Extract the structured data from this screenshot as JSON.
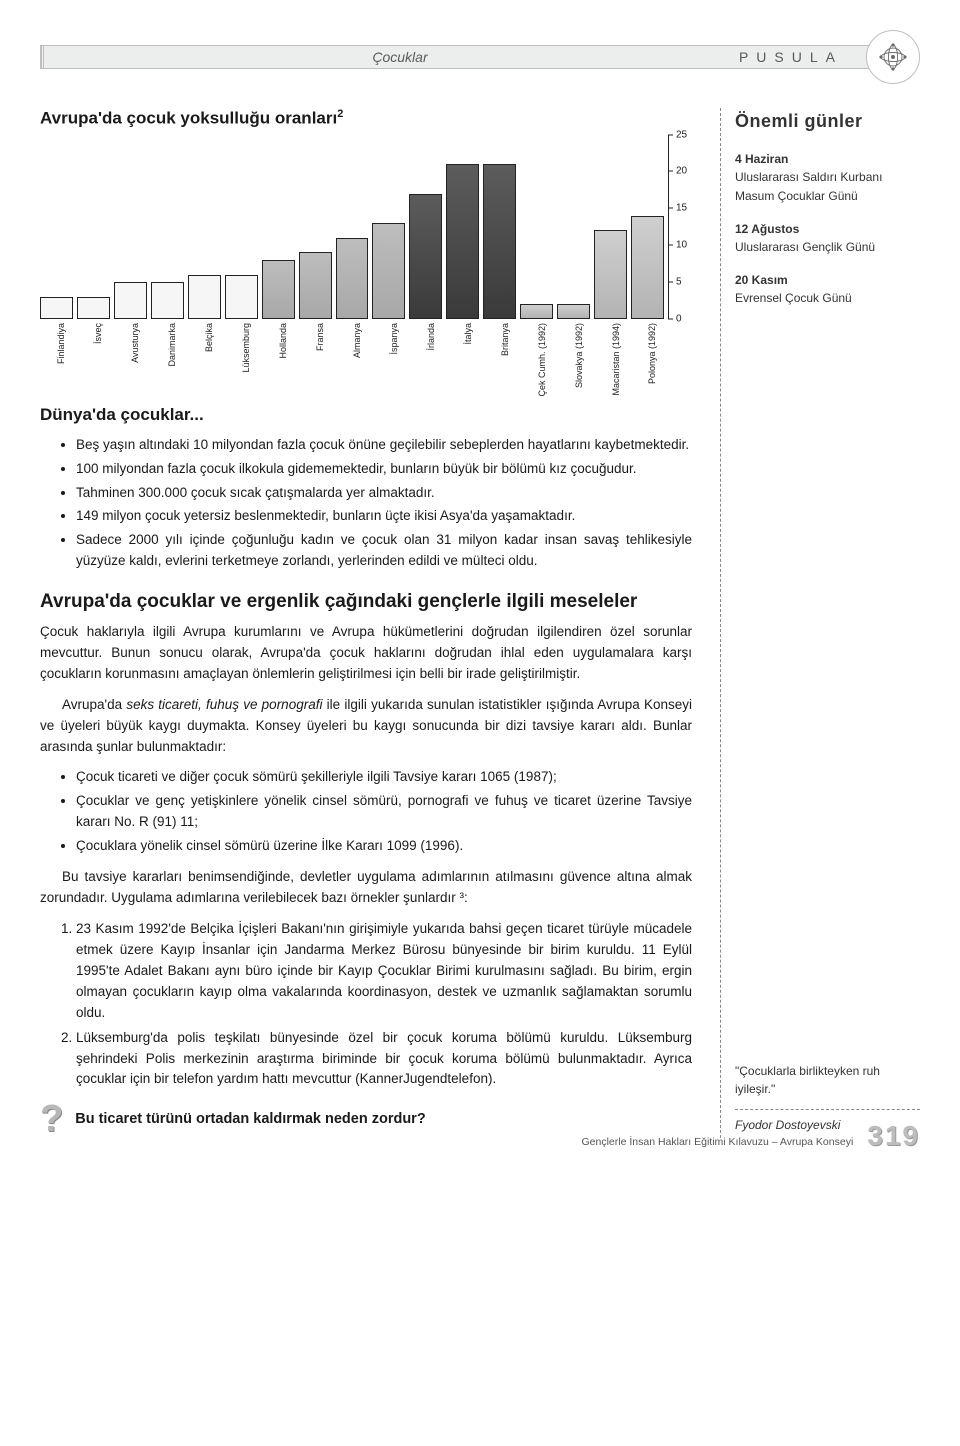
{
  "banner": {
    "left_title": "Çocuklar",
    "right_title": "PUSULA"
  },
  "chart": {
    "title": "Avrupa'da çocuk yoksulluğu oranları",
    "title_sup": "2",
    "type": "bar",
    "ylim": [
      0,
      25
    ],
    "ytick_step": 5,
    "yticks": [
      0,
      5,
      10,
      15,
      20,
      25
    ],
    "background_color": "#ffffff",
    "axis_color": "#222222",
    "tick_fontsize": 10,
    "label_fontsize": 9,
    "bar_fill": {
      "light": "#f6f6f6",
      "gray": "#b0b0b0",
      "dark": "#444444",
      "mid": "#c0c0c0"
    },
    "bars": [
      {
        "label": "Finlandiya",
        "value": 3,
        "shade": "light"
      },
      {
        "label": "İsveç",
        "value": 3,
        "shade": "light"
      },
      {
        "label": "Avusturya",
        "value": 5,
        "shade": "light"
      },
      {
        "label": "Danimarka",
        "value": 5,
        "shade": "light"
      },
      {
        "label": "Belçika",
        "value": 6,
        "shade": "light"
      },
      {
        "label": "Lüksemburg",
        "value": 6,
        "shade": "light"
      },
      {
        "label": "Hollanda",
        "value": 8,
        "shade": "gray"
      },
      {
        "label": "Fransa",
        "value": 9,
        "shade": "gray"
      },
      {
        "label": "Almanya",
        "value": 11,
        "shade": "gray"
      },
      {
        "label": "İspanya",
        "value": 13,
        "shade": "gray"
      },
      {
        "label": "İrlanda",
        "value": 17,
        "shade": "dark"
      },
      {
        "label": "İtalya",
        "value": 21,
        "shade": "dark"
      },
      {
        "label": "Britanya",
        "value": 21,
        "shade": "dark"
      },
      {
        "label": "Çek Cumh. (1992)",
        "value": 2,
        "shade": "mid"
      },
      {
        "label": "Slovakya (1992)",
        "value": 2,
        "shade": "mid"
      },
      {
        "label": "Macaristan (1994)",
        "value": 12,
        "shade": "mid"
      },
      {
        "label": "Polonya (1992)",
        "value": 14,
        "shade": "mid"
      }
    ]
  },
  "section1": {
    "title": "Dünya'da çocuklar...",
    "bullets": [
      "Beş yaşın altındaki 10 milyondan fazla çocuk önüne geçilebilir sebeplerden hayatlarını kaybetmektedir.",
      "100 milyondan fazla çocuk ilkokula gidememektedir, bunların büyük bir bölümü kız çocuğudur.",
      "Tahminen 300.000 çocuk sıcak çatışmalarda yer almaktadır.",
      "149 milyon çocuk yetersiz beslenmektedir, bunların üçte ikisi Asya'da yaşamaktadır.",
      "Sadece 2000 yılı içinde çoğunluğu kadın ve çocuk olan 31 milyon kadar insan savaş tehlikesiyle yüzyüze kaldı, evlerini terketmeye zorlandı, yerlerinden edildi ve mülteci oldu."
    ]
  },
  "section2": {
    "title": "Avrupa'da çocuklar ve ergenlik çağındaki gençlerle ilgili meseleler",
    "p1": "Çocuk haklarıyla ilgili Avrupa kurumlarını ve Avrupa hükümetlerini doğrudan ilgilendiren özel sorunlar mevcuttur. Bunun sonucu olarak, Avrupa'da çocuk haklarını doğrudan ihlal eden uygulamalara karşı çocukların korunmasını amaçlayan önlemlerin geliştirilmesi için belli bir irade geliştirilmiştir.",
    "p2a": "Avrupa'da ",
    "p2_em": "seks ticareti, fuhuş ve pornografi",
    "p2b": " ile ilgili yukarıda sunulan istatistikler ışığında Avrupa Konseyi ve üyeleri büyük kaygı duymakta. Konsey üyeleri bu kaygı sonucunda bir dizi tavsiye kararı aldı. Bunlar arasında şunlar bulunmaktadır:",
    "bullets2": [
      "Çocuk ticareti ve diğer çocuk sömürü şekilleriyle ilgili Tavsiye kararı 1065 (1987);",
      "Çocuklar ve genç yetişkinlere yönelik cinsel sömürü, pornografi ve fuhuş ve ticaret üzerine Tavsiye kararı No. R (91) 11;",
      "Çocuklara yönelik cinsel sömürü üzerine İlke Kararı 1099 (1996)."
    ],
    "p3": "Bu tavsiye kararları benimsendiğinde, devletler uygulama adımlarının atılmasını güvence altına almak zorundadır. Uygulama adımlarına verilebilecek bazı örnekler şunlardır ³:",
    "ordered": [
      "23 Kasım 1992'de Belçika İçişleri Bakanı'nın girişimiyle yukarıda bahsi geçen ticaret türüyle mücadele etmek üzere Kayıp İnsanlar için Jandarma Merkez Bürosu bünyesinde bir birim kuruldu. 11 Eylül 1995'te Adalet Bakanı aynı büro içinde bir Kayıp Çocuklar Birimi kurulmasını sağladı. Bu birim, ergin olmayan çocukların kayıp olma vakalarında koordinasyon, destek ve uzmanlık sağlamaktan sorumlu oldu.",
      "Lüksemburg'da polis teşkilatı bünyesinde özel bir çocuk koruma bölümü kuruldu. Lüksemburg şehrindeki Polis merkezinin araştırma biriminde bir çocuk koruma bölümü bulunmaktadır. Ayrıca çocuklar için bir telefon yardım hattı mevcuttur (KannerJugendtelefon)."
    ]
  },
  "question": {
    "text": "Bu ticaret türünü ortadan kaldırmak neden zordur?"
  },
  "sidebar": {
    "title": "Önemli günler",
    "items": [
      {
        "date": "4 Haziran",
        "name": "Uluslararası Saldırı Kurbanı Masum Çocuklar Günü"
      },
      {
        "date": "12 Ağustos",
        "name": "Uluslararası Gençlik Günü"
      },
      {
        "date": "20 Kasım",
        "name": "Evrensel Çocuk Günü"
      }
    ],
    "quote": "\"Çocuklarla birlikteyken ruh iyileşir.\"",
    "author": "Fyodor Dostoyevski"
  },
  "footer": {
    "text": "Gençlerle İnsan Hakları Eğitimi Kılavuzu – Avrupa Konseyi",
    "page": "319"
  }
}
